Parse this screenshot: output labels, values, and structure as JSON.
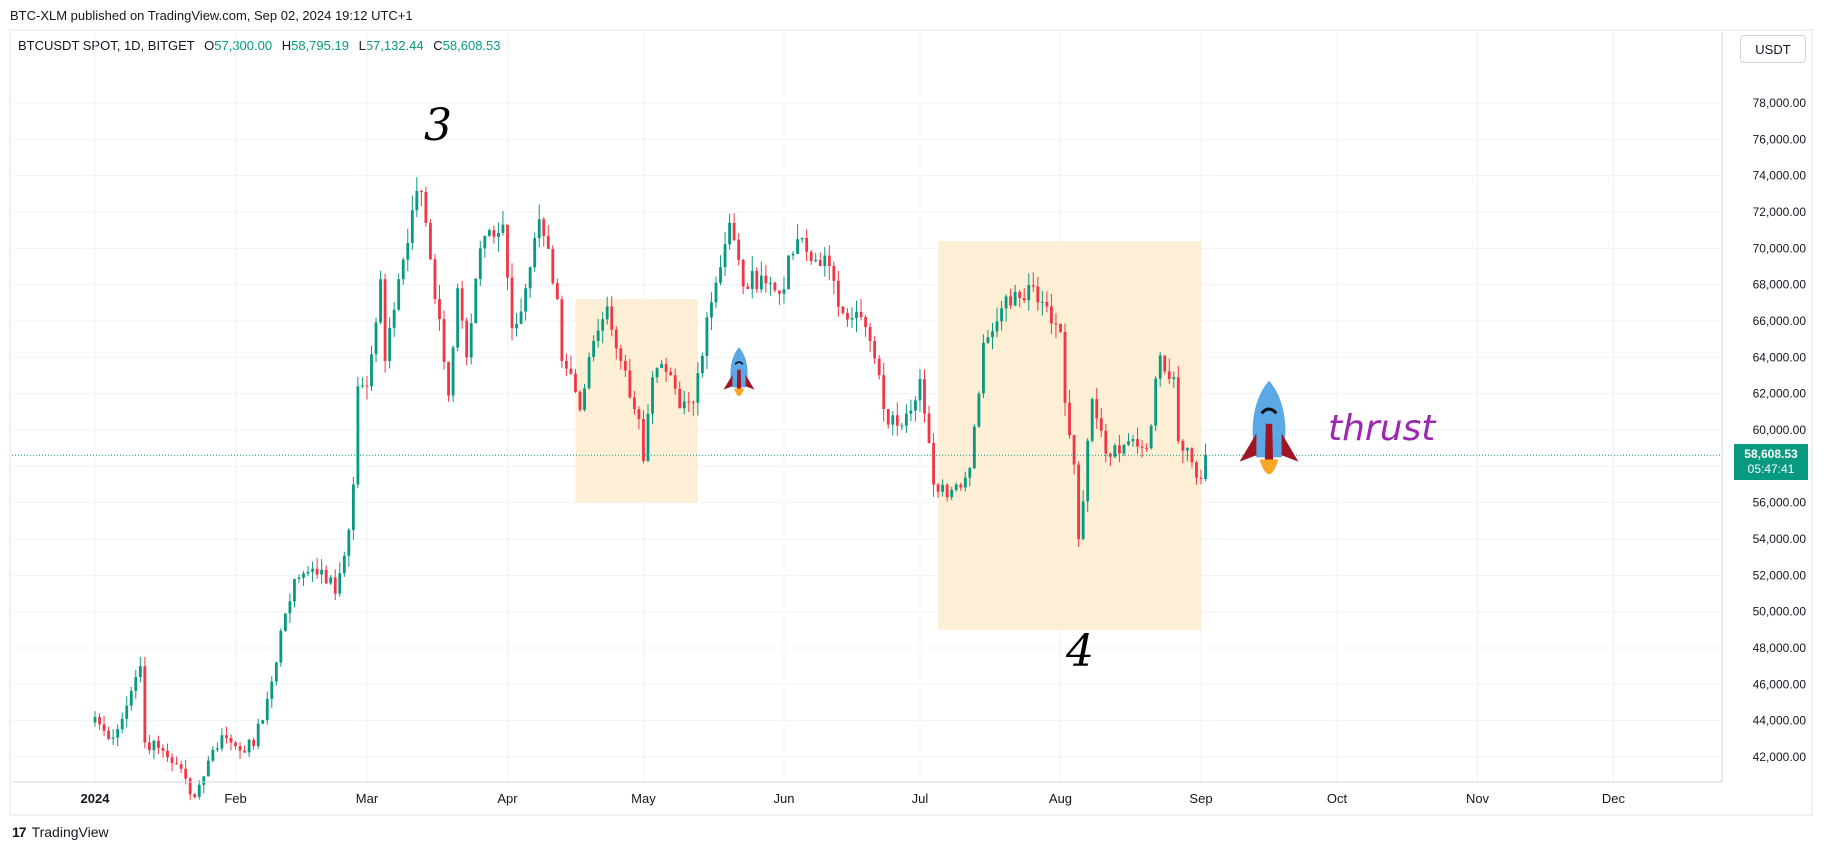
{
  "header": {
    "published": "BTC-XLM published on TradingView.com, Sep 02, 2024 19:12 UTC+1"
  },
  "legend": {
    "symbol": "BTCUSDT SPOT, 1D, BITGET",
    "open_label": "O",
    "open": "57,300.00",
    "high_label": "H",
    "high": "58,795.19",
    "low_label": "L",
    "low": "57,132.44",
    "close_label": "C",
    "close": "58,608.53"
  },
  "currency_button": "USDT",
  "price_tag": {
    "price": "58,608.53",
    "countdown": "05:47:41"
  },
  "footer": {
    "brand": "TradingView",
    "logo": "17"
  },
  "annotations": {
    "wave3": "3",
    "wave4": "4",
    "thrust": "thrust"
  },
  "colors": {
    "up": "#089981",
    "down": "#f23645",
    "box": "#fdeed6",
    "thrust": "#9c27b0"
  },
  "chart_data": {
    "type": "candlestick",
    "title": "BTCUSDT SPOT, 1D, BITGET",
    "ylim": [
      40000,
      80000
    ],
    "y_ticks": [
      42000,
      44000,
      46000,
      48000,
      50000,
      52000,
      54000,
      56000,
      58000,
      60000,
      62000,
      64000,
      66000,
      68000,
      70000,
      72000,
      74000,
      76000,
      78000
    ],
    "y_tick_labels": [
      "42,000.00",
      "44,000.00",
      "46,000.00",
      "48,000.00",
      "50,000.00",
      "52,000.00",
      "54,000.00",
      "56,000.00",
      "58,000.00",
      "60,000.00",
      "62,000.00",
      "64,000.00",
      "66,000.00",
      "68,000.00",
      "70,000.00",
      "72,000.00",
      "74,000.00",
      "76,000.00",
      "78,000.00"
    ],
    "x_tick_labels": [
      "2024",
      "Feb",
      "Mar",
      "Apr",
      "May",
      "Jun",
      "Jul",
      "Aug",
      "Sep",
      "Oct",
      "Nov",
      "Dec"
    ],
    "x_tick_dates": [
      "2024-01-01",
      "2024-02-01",
      "2024-03-01",
      "2024-04-01",
      "2024-05-01",
      "2024-06-01",
      "2024-07-01",
      "2024-08-01",
      "2024-09-01",
      "2024-10-01",
      "2024-11-01",
      "2024-12-01"
    ],
    "grid": true,
    "last_price": 58608.53,
    "zones": [
      {
        "from": "2024-04-16",
        "to": "2024-05-13",
        "low": 56000,
        "high": 67200
      },
      {
        "from": "2024-07-05",
        "to": "2024-09-01",
        "low": 49000,
        "high": 70400
      }
    ],
    "wave_labels": [
      {
        "label": "3",
        "date": "2024-03-14",
        "price": 76500
      },
      {
        "label": "4",
        "date": "2024-08-05",
        "price": 47600
      }
    ],
    "closes": [
      [
        "2024-01-01",
        44200
      ],
      [
        "2024-01-04",
        43000
      ],
      [
        "2024-01-07",
        44100
      ],
      [
        "2024-01-10",
        46400
      ],
      [
        "2024-01-11",
        47000
      ],
      [
        "2024-01-12",
        42800
      ],
      [
        "2024-01-15",
        42500
      ],
      [
        "2024-01-19",
        41600
      ],
      [
        "2024-01-23",
        39800
      ],
      [
        "2024-01-26",
        41800
      ],
      [
        "2024-01-29",
        43200
      ],
      [
        "2024-02-01",
        42600
      ],
      [
        "2024-02-05",
        42600
      ],
      [
        "2024-02-08",
        45200
      ],
      [
        "2024-02-10",
        47200
      ],
      [
        "2024-02-12",
        49900
      ],
      [
        "2024-02-14",
        51800
      ],
      [
        "2024-02-16",
        52100
      ],
      [
        "2024-02-20",
        52300
      ],
      [
        "2024-02-23",
        51000
      ],
      [
        "2024-02-26",
        54500
      ],
      [
        "2024-02-27",
        57000
      ],
      [
        "2024-02-28",
        62400
      ],
      [
        "2024-03-01",
        62400
      ],
      [
        "2024-03-04",
        68300
      ],
      [
        "2024-03-05",
        63800
      ],
      [
        "2024-03-08",
        68300
      ],
      [
        "2024-03-11",
        72100
      ],
      [
        "2024-03-13",
        73100
      ],
      [
        "2024-03-14",
        71400
      ],
      [
        "2024-03-15",
        69400
      ],
      [
        "2024-03-19",
        61900
      ],
      [
        "2024-03-21",
        67800
      ],
      [
        "2024-03-23",
        64000
      ],
      [
        "2024-03-26",
        70000
      ],
      [
        "2024-03-28",
        71000
      ],
      [
        "2024-03-31",
        71300
      ],
      [
        "2024-04-02",
        65600
      ],
      [
        "2024-04-05",
        67800
      ],
      [
        "2024-04-08",
        71600
      ],
      [
        "2024-04-12",
        67200
      ],
      [
        "2024-04-13",
        63800
      ],
      [
        "2024-04-15",
        63100
      ],
      [
        "2024-04-17",
        61100
      ],
      [
        "2024-04-20",
        64900
      ],
      [
        "2024-04-23",
        66800
      ],
      [
        "2024-04-26",
        63800
      ],
      [
        "2024-04-30",
        60600
      ],
      [
        "2024-05-01",
        58300
      ],
      [
        "2024-05-03",
        62900
      ],
      [
        "2024-05-06",
        63200
      ],
      [
        "2024-05-09",
        61200
      ],
      [
        "2024-05-12",
        61500
      ],
      [
        "2024-05-15",
        66200
      ],
      [
        "2024-05-20",
        71400
      ],
      [
        "2024-05-23",
        67900
      ],
      [
        "2024-05-27",
        68500
      ],
      [
        "2024-05-31",
        67500
      ],
      [
        "2024-06-04",
        70500
      ],
      [
        "2024-06-07",
        69300
      ],
      [
        "2024-06-10",
        69600
      ],
      [
        "2024-06-13",
        66800
      ],
      [
        "2024-06-17",
        66500
      ],
      [
        "2024-06-20",
        64900
      ],
      [
        "2024-06-24",
        60300
      ],
      [
        "2024-06-28",
        60900
      ],
      [
        "2024-07-01",
        62800
      ],
      [
        "2024-07-04",
        57000
      ],
      [
        "2024-07-05",
        56600
      ],
      [
        "2024-07-08",
        56700
      ],
      [
        "2024-07-12",
        57900
      ],
      [
        "2024-07-15",
        64800
      ],
      [
        "2024-07-19",
        66700
      ],
      [
        "2024-07-22",
        67600
      ],
      [
        "2024-07-26",
        67900
      ],
      [
        "2024-07-29",
        66800
      ],
      [
        "2024-08-01",
        65400
      ],
      [
        "2024-08-02",
        61500
      ],
      [
        "2024-08-04",
        58100
      ],
      [
        "2024-08-05",
        54000
      ],
      [
        "2024-08-08",
        61700
      ],
      [
        "2024-08-11",
        58700
      ],
      [
        "2024-08-14",
        58700
      ],
      [
        "2024-08-17",
        59500
      ],
      [
        "2024-08-20",
        59000
      ],
      [
        "2024-08-23",
        64100
      ],
      [
        "2024-08-26",
        62900
      ],
      [
        "2024-08-27",
        59400
      ],
      [
        "2024-08-29",
        59000
      ],
      [
        "2024-09-01",
        57300
      ],
      [
        "2024-09-02",
        58608.53
      ]
    ]
  }
}
